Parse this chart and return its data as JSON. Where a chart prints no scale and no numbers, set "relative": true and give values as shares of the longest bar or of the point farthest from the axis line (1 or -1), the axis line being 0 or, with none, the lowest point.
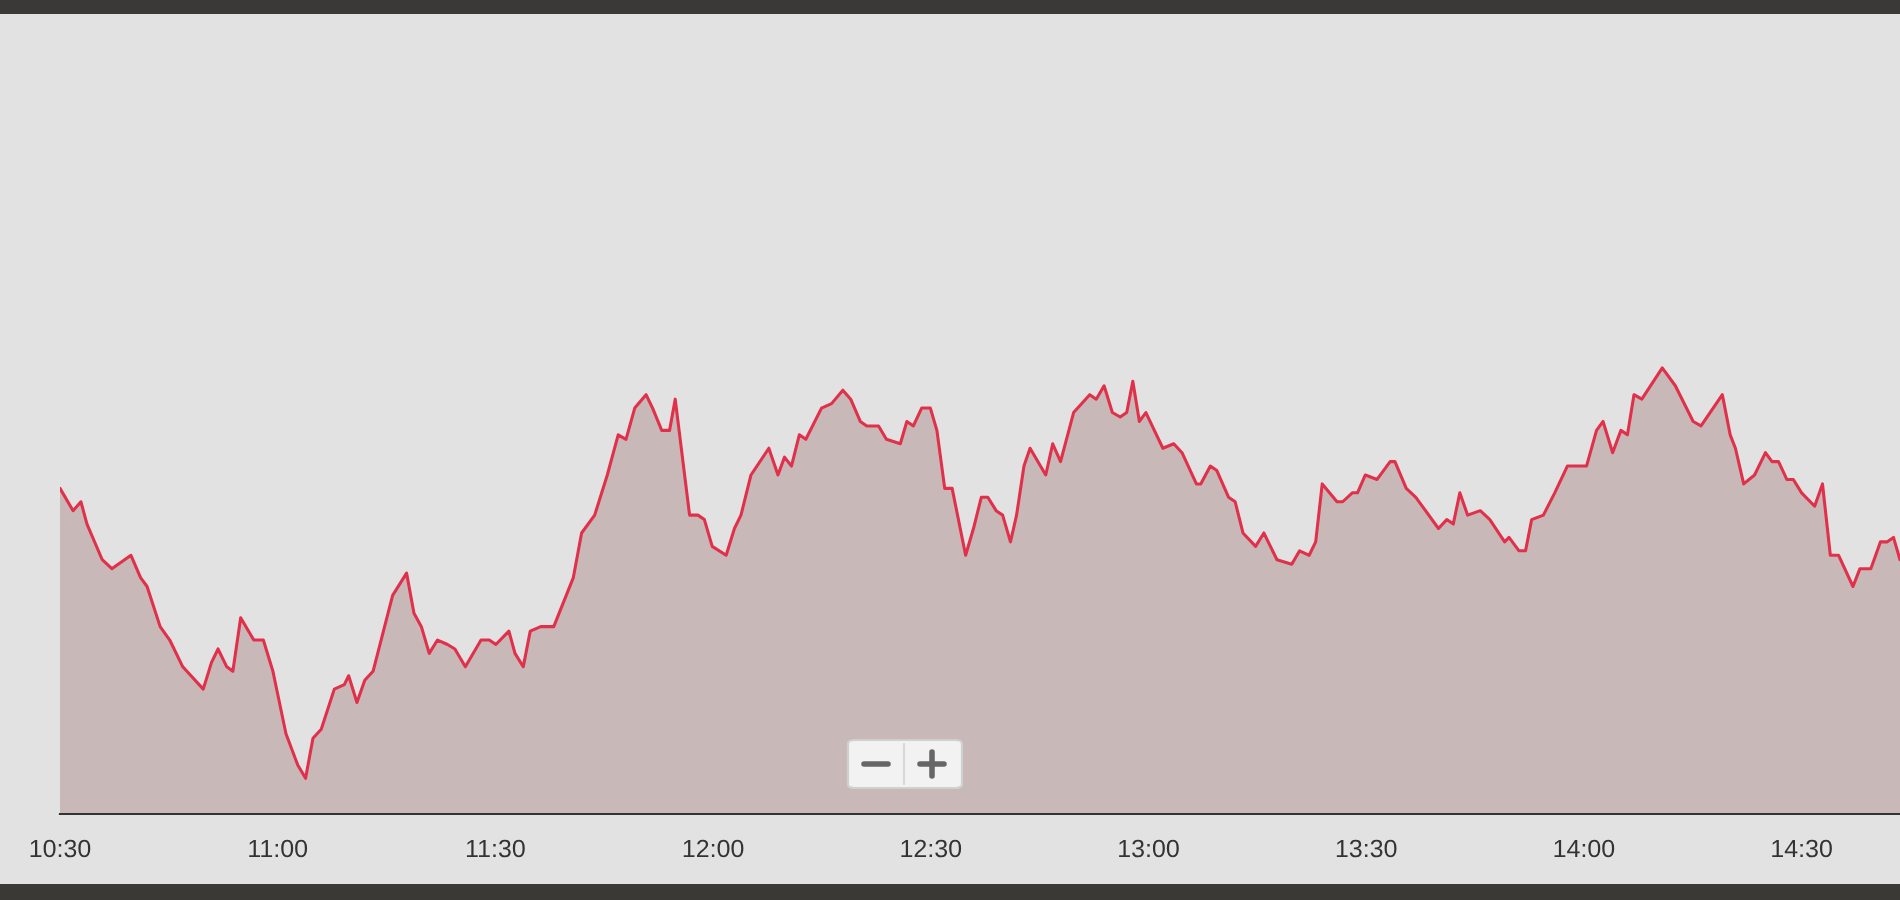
{
  "chart_data": {
    "type": "area",
    "relative": true,
    "grid": false,
    "xlim": [
      10.5,
      14.726
    ],
    "xticks": [
      {
        "value": 10.5,
        "label": "10:30"
      },
      {
        "value": 11,
        "label": "11:00"
      },
      {
        "value": 11.5,
        "label": "11:30"
      },
      {
        "value": 12,
        "label": "12:00"
      },
      {
        "value": 12.5,
        "label": "12:30"
      },
      {
        "value": 13,
        "label": "13:00"
      },
      {
        "value": 13.5,
        "label": "13:30"
      },
      {
        "value": 14,
        "label": "14:00"
      },
      {
        "value": 14.5,
        "label": "14:30"
      }
    ],
    "x": [
      10.5,
      10.53,
      10.548,
      10.562,
      10.597,
      10.619,
      10.663,
      10.685,
      10.7,
      10.73,
      10.752,
      10.782,
      10.829,
      10.848,
      10.863,
      10.883,
      10.897,
      10.915,
      10.945,
      10.967,
      10.989,
      11.019,
      11.046,
      11.064,
      11.081,
      11.1,
      11.13,
      11.153,
      11.163,
      11.182,
      11.2,
      11.219,
      11.264,
      11.296,
      11.313,
      11.33,
      11.348,
      11.367,
      11.39,
      11.407,
      11.431,
      11.467,
      11.486,
      11.501,
      11.531,
      11.545,
      11.564,
      11.58,
      11.604,
      11.634,
      11.679,
      11.698,
      11.728,
      11.757,
      11.782,
      11.8,
      11.82,
      11.846,
      11.861,
      11.882,
      11.9,
      11.913,
      11.946,
      11.965,
      11.98,
      11.998,
      12.03,
      12.049,
      12.064,
      12.087,
      12.128,
      12.149,
      12.164,
      12.18,
      12.198,
      12.213,
      12.249,
      12.272,
      12.298,
      12.316,
      12.338,
      12.353,
      12.38,
      12.398,
      12.43,
      12.445,
      12.46,
      12.479,
      12.499,
      12.514,
      12.532,
      12.549,
      12.58,
      12.598,
      12.616,
      12.631,
      12.65,
      12.665,
      12.683,
      12.697,
      12.714,
      12.728,
      12.764,
      12.78,
      12.798,
      12.828,
      12.865,
      12.88,
      12.898,
      12.917,
      12.935,
      12.95,
      12.964,
      12.979,
      12.994,
      13.033,
      13.058,
      13.077,
      13.11,
      13.12,
      13.142,
      13.157,
      13.184,
      13.199,
      13.217,
      13.246,
      13.265,
      13.295,
      13.329,
      13.347,
      13.369,
      13.384,
      13.399,
      13.433,
      13.446,
      13.468,
      13.48,
      13.498,
      13.525,
      13.555,
      13.566,
      13.592,
      13.614,
      13.666,
      13.685,
      13.7,
      13.715,
      13.733,
      13.762,
      13.784,
      13.818,
      13.828,
      13.851,
      13.866,
      13.88,
      13.907,
      13.933,
      13.962,
      14.006,
      14.029,
      14.044,
      14.066,
      14.085,
      14.1,
      14.115,
      14.133,
      14.18,
      14.21,
      14.251,
      14.269,
      14.318,
      14.336,
      14.348,
      14.367,
      14.392,
      14.417,
      14.432,
      14.447,
      14.466,
      14.481,
      14.5,
      14.53,
      14.548,
      14.566,
      14.585,
      14.618,
      14.634,
      14.659,
      14.681,
      14.696,
      14.711,
      14.726
    ],
    "series": [
      {
        "color": "#e0304a",
        "values": [
          0.73,
          0.68,
          0.7,
          0.65,
          0.57,
          0.55,
          0.58,
          0.53,
          0.51,
          0.42,
          0.39,
          0.33,
          0.28,
          0.34,
          0.37,
          0.33,
          0.32,
          0.44,
          0.39,
          0.39,
          0.32,
          0.18,
          0.11,
          0.08,
          0.17,
          0.19,
          0.28,
          0.29,
          0.31,
          0.25,
          0.3,
          0.32,
          0.49,
          0.54,
          0.45,
          0.42,
          0.36,
          0.39,
          0.38,
          0.37,
          0.33,
          0.39,
          0.39,
          0.38,
          0.41,
          0.36,
          0.33,
          0.41,
          0.42,
          0.42,
          0.53,
          0.63,
          0.67,
          0.76,
          0.85,
          0.84,
          0.91,
          0.94,
          0.91,
          0.86,
          0.86,
          0.93,
          0.67,
          0.67,
          0.66,
          0.6,
          0.58,
          0.64,
          0.67,
          0.76,
          0.82,
          0.76,
          0.8,
          0.78,
          0.85,
          0.84,
          0.91,
          0.92,
          0.95,
          0.93,
          0.88,
          0.87,
          0.87,
          0.84,
          0.83,
          0.88,
          0.87,
          0.91,
          0.91,
          0.86,
          0.73,
          0.73,
          0.58,
          0.64,
          0.71,
          0.71,
          0.68,
          0.67,
          0.61,
          0.67,
          0.78,
          0.82,
          0.76,
          0.83,
          0.79,
          0.9,
          0.94,
          0.93,
          0.96,
          0.9,
          0.89,
          0.9,
          0.97,
          0.88,
          0.9,
          0.82,
          0.83,
          0.81,
          0.74,
          0.74,
          0.78,
          0.77,
          0.71,
          0.7,
          0.63,
          0.6,
          0.63,
          0.57,
          0.56,
          0.59,
          0.58,
          0.61,
          0.74,
          0.7,
          0.7,
          0.72,
          0.72,
          0.76,
          0.75,
          0.79,
          0.79,
          0.73,
          0.71,
          0.64,
          0.66,
          0.65,
          0.72,
          0.67,
          0.68,
          0.66,
          0.61,
          0.62,
          0.59,
          0.59,
          0.66,
          0.67,
          0.72,
          0.78,
          0.78,
          0.86,
          0.88,
          0.81,
          0.86,
          0.85,
          0.94,
          0.93,
          1.0,
          0.96,
          0.88,
          0.87,
          0.94,
          0.85,
          0.82,
          0.74,
          0.76,
          0.81,
          0.79,
          0.79,
          0.75,
          0.75,
          0.72,
          0.69,
          0.74,
          0.58,
          0.58,
          0.51,
          0.55,
          0.55,
          0.61,
          0.61,
          0.62,
          0.57
        ]
      }
    ]
  }
}
